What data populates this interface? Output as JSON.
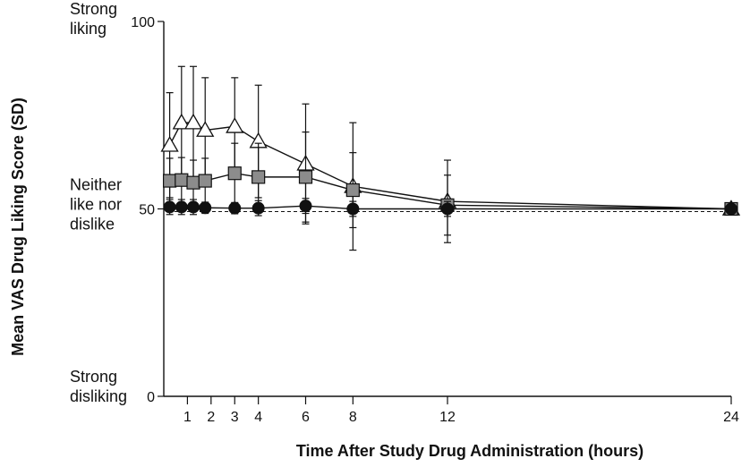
{
  "chart_data": {
    "type": "line",
    "xlabel": "Time After Study Drug Administration (hours)",
    "ylabel": "Mean VAS Drug Liking Score (SD)",
    "xlim": [
      0,
      24
    ],
    "ylim": [
      0,
      100
    ],
    "xticks": [
      "1",
      "2",
      "3",
      "4",
      "6",
      "8",
      "12",
      "24"
    ],
    "yticks": [
      "0",
      "50",
      "100"
    ],
    "y_annotations": [
      {
        "y": 100,
        "lines": [
          "Strong",
          "liking"
        ]
      },
      {
        "y": 50,
        "lines": [
          "Neither",
          "like nor",
          "dislike"
        ]
      },
      {
        "y": 0,
        "lines": [
          "Strong",
          "disliking"
        ]
      }
    ],
    "reference_line": {
      "y": 50,
      "style": "dashed"
    },
    "grid": false,
    "series": [
      {
        "marker": "triangle",
        "fill": "#ffffff",
        "x": [
          0.25,
          0.75,
          1.25,
          1.75,
          3,
          4,
          6,
          8,
          12,
          24
        ],
        "y": [
          67,
          73,
          73,
          71,
          72,
          68,
          62,
          56,
          52,
          50
        ],
        "err": [
          14,
          15,
          15,
          14,
          13,
          15,
          16,
          17,
          11,
          0
        ]
      },
      {
        "marker": "square",
        "fill": "#8c8c8c",
        "x": [
          0.25,
          0.75,
          1.25,
          1.75,
          3,
          4,
          6,
          8,
          12,
          24
        ],
        "y": [
          57.5,
          57.7,
          57,
          57.5,
          59.5,
          58.5,
          58.5,
          55,
          51,
          50
        ],
        "err": [
          6,
          6,
          6,
          6,
          8,
          9,
          12,
          10,
          8,
          0
        ]
      },
      {
        "marker": "circle",
        "fill": "#111111",
        "x": [
          0.25,
          0.75,
          1.25,
          1.75,
          3,
          4,
          6,
          8,
          12,
          24
        ],
        "y": [
          50.5,
          50.5,
          50.5,
          50.3,
          50.2,
          50.2,
          50.8,
          50,
          50,
          50
        ],
        "err": [
          2,
          2,
          2,
          1.5,
          1.5,
          2,
          2,
          2,
          2,
          0
        ]
      }
    ]
  }
}
